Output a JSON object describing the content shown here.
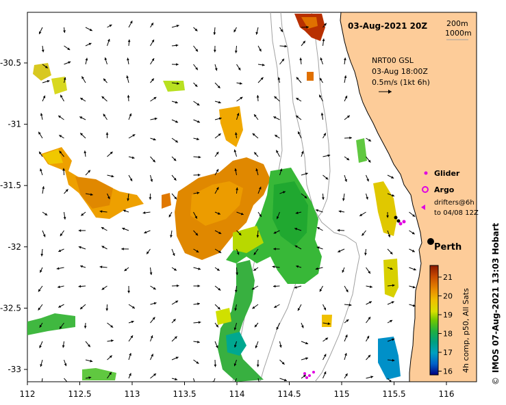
{
  "title": "03-Aug-2021 20Z",
  "isobaths": [
    "200m",
    "1000m"
  ],
  "wind": {
    "line1": "NRT00 GSL",
    "line2": "03-Aug 18:00Z",
    "line3": "0.5m/s (1kt 6h)"
  },
  "legend": {
    "glider": "Glider",
    "argo": "Argo",
    "drifters_line1": "drifters@6h",
    "drifters_line2": "to 04/08 12Z"
  },
  "city": "Perth",
  "colorbar": {
    "label": "4h comp, p50, All Sats",
    "ticks": [
      "21",
      "20",
      "19",
      "18",
      "17",
      "16"
    ],
    "colors": [
      "#8b1a00",
      "#c85000",
      "#e88a00",
      "#f0b800",
      "#e8e000",
      "#9ad800",
      "#30b830",
      "#00a060",
      "#00a0b0",
      "#0070d0",
      "#0030a0",
      "#000080"
    ]
  },
  "credit": "IMOS 07-Aug-2021 13:03 Hobart",
  "copyright": "©",
  "axes": {
    "x_ticks": [
      "112",
      "112.5",
      "113",
      "113.5",
      "114",
      "114.5",
      "115",
      "115.5",
      "116"
    ],
    "y_ticks": [
      "-30.5",
      "-31",
      "-31.5",
      "-32",
      "-32.5",
      "-33"
    ]
  },
  "colors": {
    "land": "#fdcc99",
    "sea": "#ffffff",
    "glider": "#e000e0",
    "argo": "#e000e0"
  }
}
